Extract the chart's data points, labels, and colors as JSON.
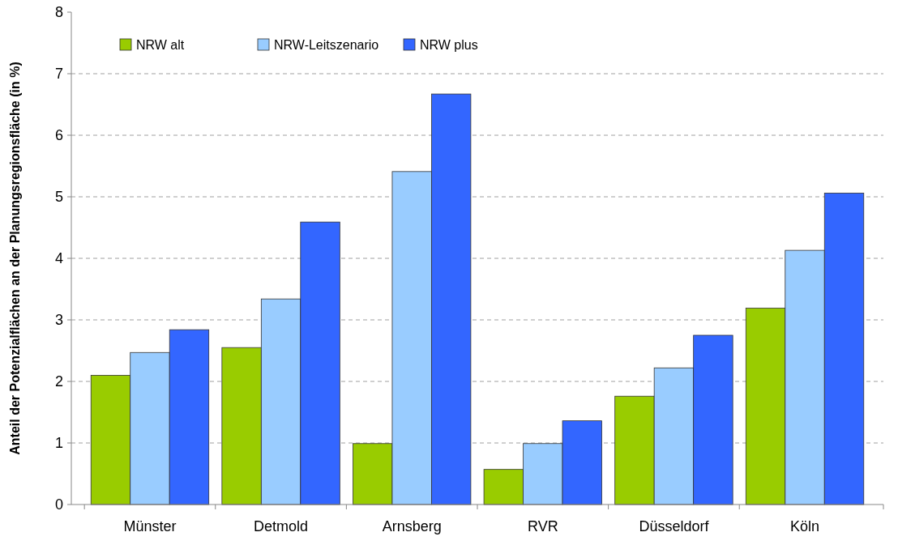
{
  "chart_data": {
    "type": "bar",
    "ylabel": "Anteil der Potenzialflächen an der Planungsregionsfläche (in %)",
    "categories": [
      "Münster",
      "Detmold",
      "Arnsberg",
      "RVR",
      "Düsseldorf",
      "Köln"
    ],
    "series": [
      {
        "name": "NRW alt",
        "color": "#99cc00",
        "values": [
          2.1,
          2.55,
          0.99,
          0.57,
          1.76,
          3.19
        ]
      },
      {
        "name": "NRW-Leitszenario",
        "color": "#99ccff",
        "values": [
          2.47,
          3.34,
          5.41,
          0.99,
          2.22,
          4.13
        ]
      },
      {
        "name": "NRW plus",
        "color": "#3366ff",
        "values": [
          2.84,
          4.59,
          6.67,
          1.36,
          2.75,
          5.06
        ]
      }
    ],
    "ylim": [
      0,
      8
    ],
    "yticks": [
      0,
      1,
      2,
      3,
      4,
      5,
      6,
      7,
      8
    ],
    "grid": "y",
    "legend": "top left"
  }
}
